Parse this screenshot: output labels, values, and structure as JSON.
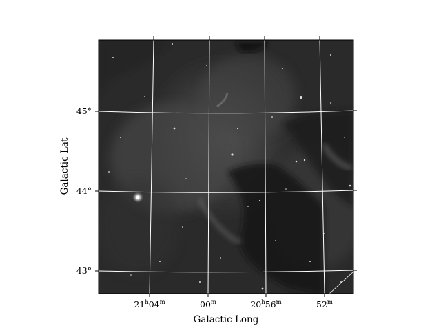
{
  "figure": {
    "xlabel": "Galactic Long",
    "ylabel": "Galactic Lat",
    "grid_color": "#ffffff",
    "colormap": "grayscale",
    "x_ticks": [
      {
        "major": "21",
        "major_unit": "h",
        "minor": "04",
        "minor_unit": "m"
      },
      {
        "major": "",
        "major_unit": "",
        "minor": "00",
        "minor_unit": "m"
      },
      {
        "major": "20",
        "major_unit": "h",
        "minor": "56",
        "minor_unit": "m"
      },
      {
        "major": "",
        "major_unit": "",
        "minor": "52",
        "minor_unit": "m"
      }
    ],
    "y_ticks": [
      "45°",
      "44°",
      "43°"
    ]
  }
}
